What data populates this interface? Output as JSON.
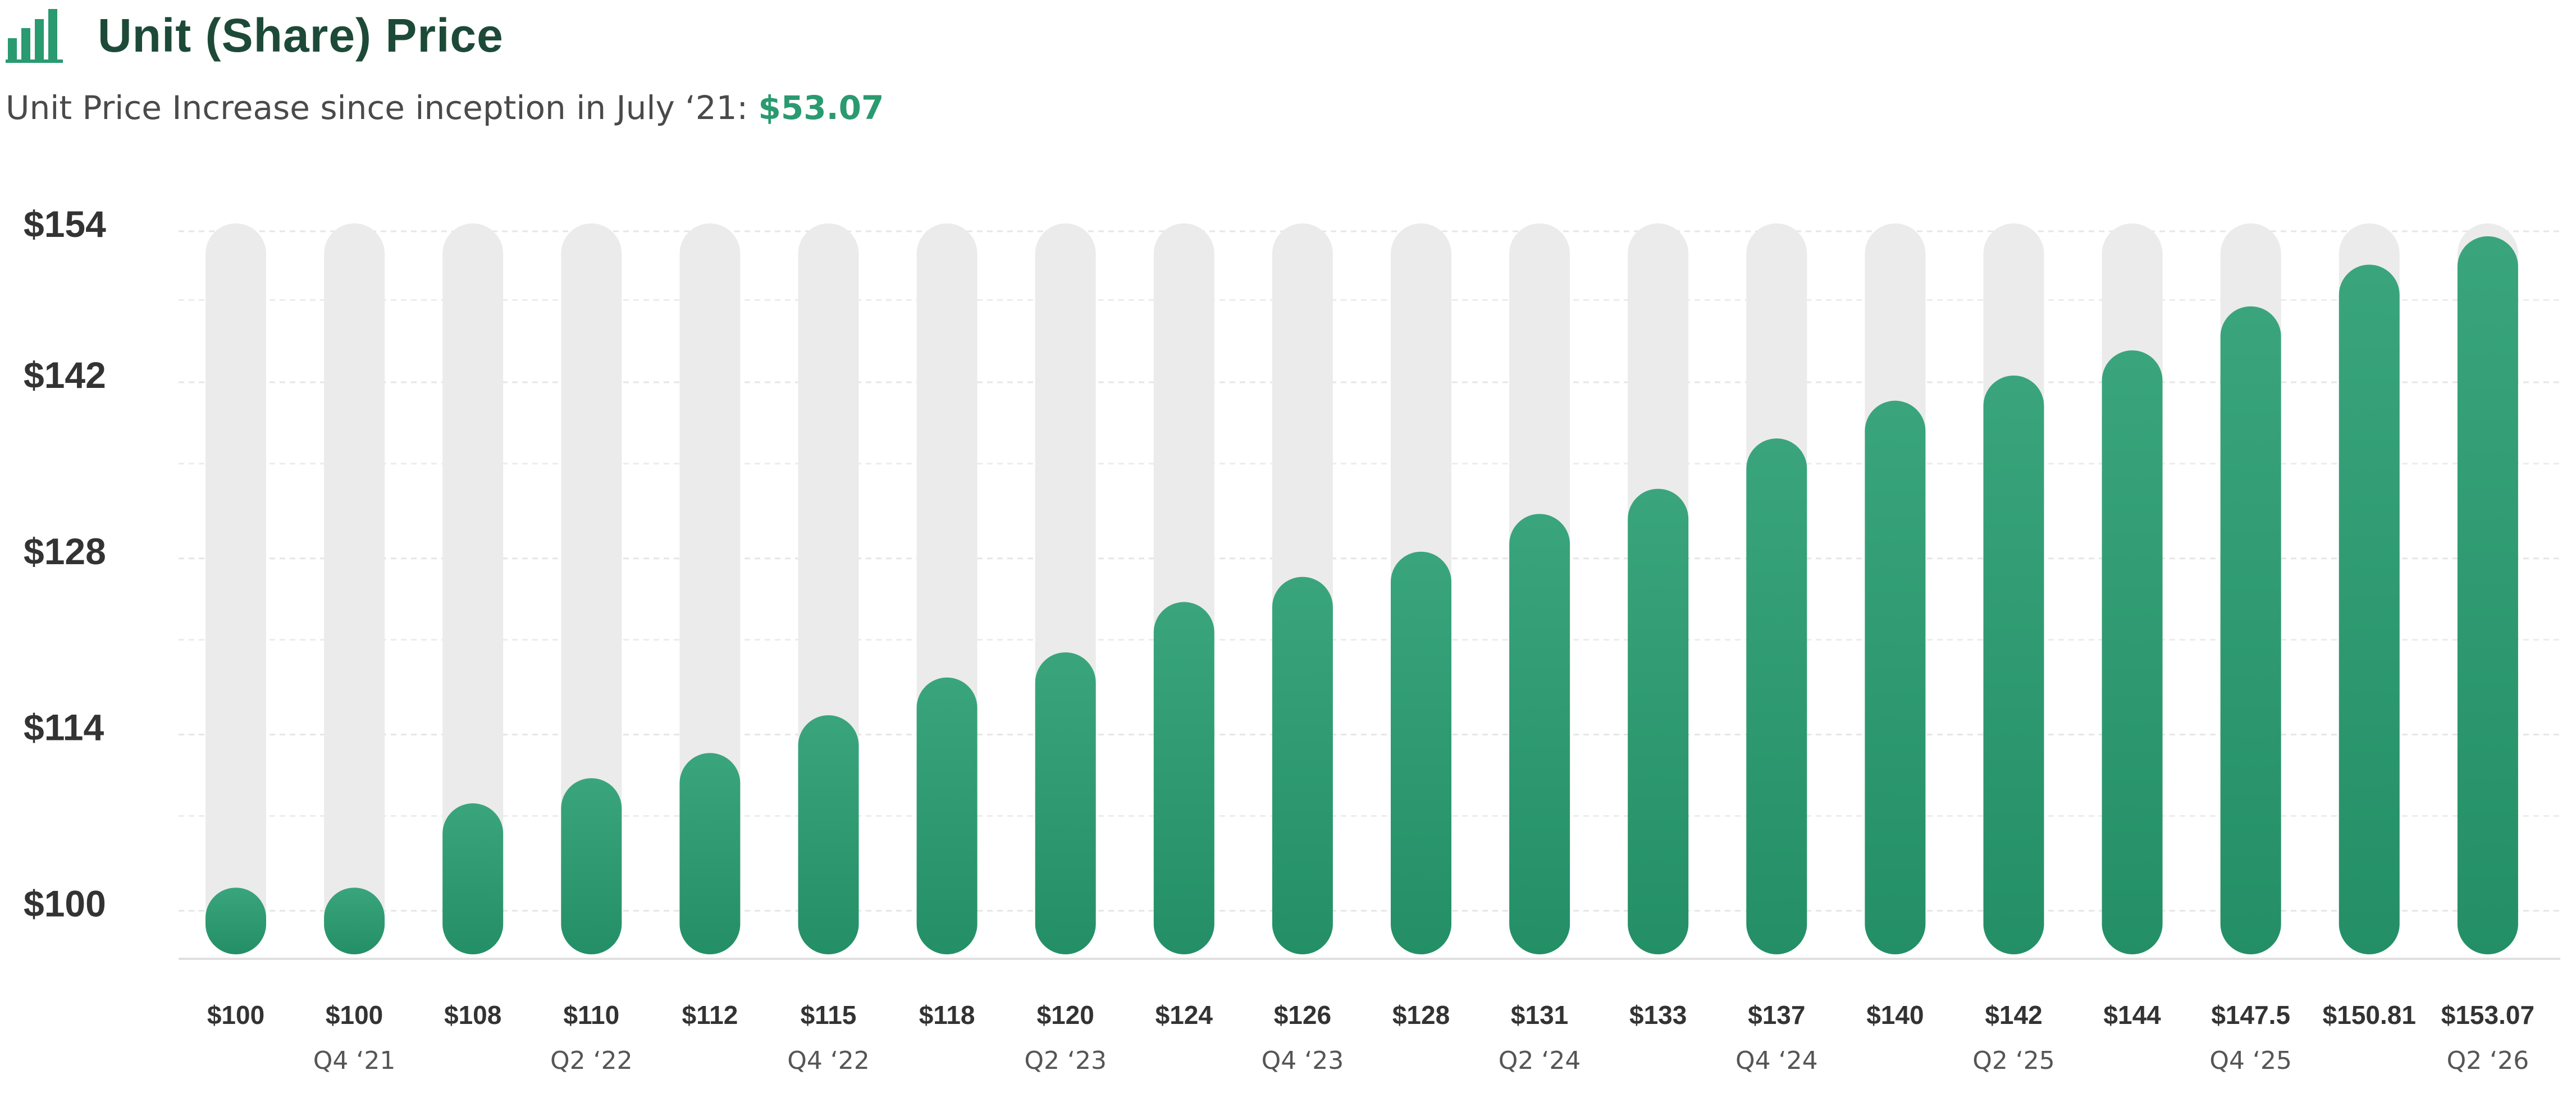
{
  "header": {
    "icon": "bar-chart-icon",
    "title": "Unit (Share) Price",
    "subtitle_text": "Unit Price Increase since inception in July ‘21: ",
    "subtitle_value": "$53.07"
  },
  "colors": {
    "accent": "#2a9a70",
    "bar_top": "#3aa57c",
    "bar_bottom": "#248f66",
    "track": "#ebebeb",
    "title": "#1d4a38"
  },
  "chart_data": {
    "type": "bar",
    "title": "Unit (Share) Price",
    "ylabel": "",
    "xlabel": "",
    "ylim": [
      96,
      154
    ],
    "grid": true,
    "yticks": [
      100,
      114,
      128,
      142,
      154
    ],
    "ytick_labels": [
      "$100",
      "$114",
      "$128",
      "$142",
      "$154"
    ],
    "values": [
      100,
      100,
      108,
      110,
      112,
      115,
      118,
      120,
      124,
      126,
      128,
      131,
      133,
      137,
      140,
      142,
      144,
      147.5,
      150.81,
      153.07
    ],
    "value_labels": [
      "$100",
      "$100",
      "$108",
      "$110",
      "$112",
      "$115",
      "$118",
      "$120",
      "$124",
      "$126",
      "$128",
      "$131",
      "$133",
      "$137",
      "$140",
      "$142",
      "$144",
      "$147.5",
      "$150.81",
      "$153.07"
    ],
    "quarter_labels": [
      "",
      "Q4 ‘21",
      "",
      "Q2 ‘22",
      "",
      "Q4 ‘22",
      "",
      "Q2 ‘23",
      "",
      "Q4 ‘23",
      "",
      "Q2 ‘24",
      "",
      "Q4 ‘24",
      "",
      "Q2 ‘25",
      "",
      "Q4 ‘25",
      "",
      "Q2 ‘26"
    ]
  }
}
